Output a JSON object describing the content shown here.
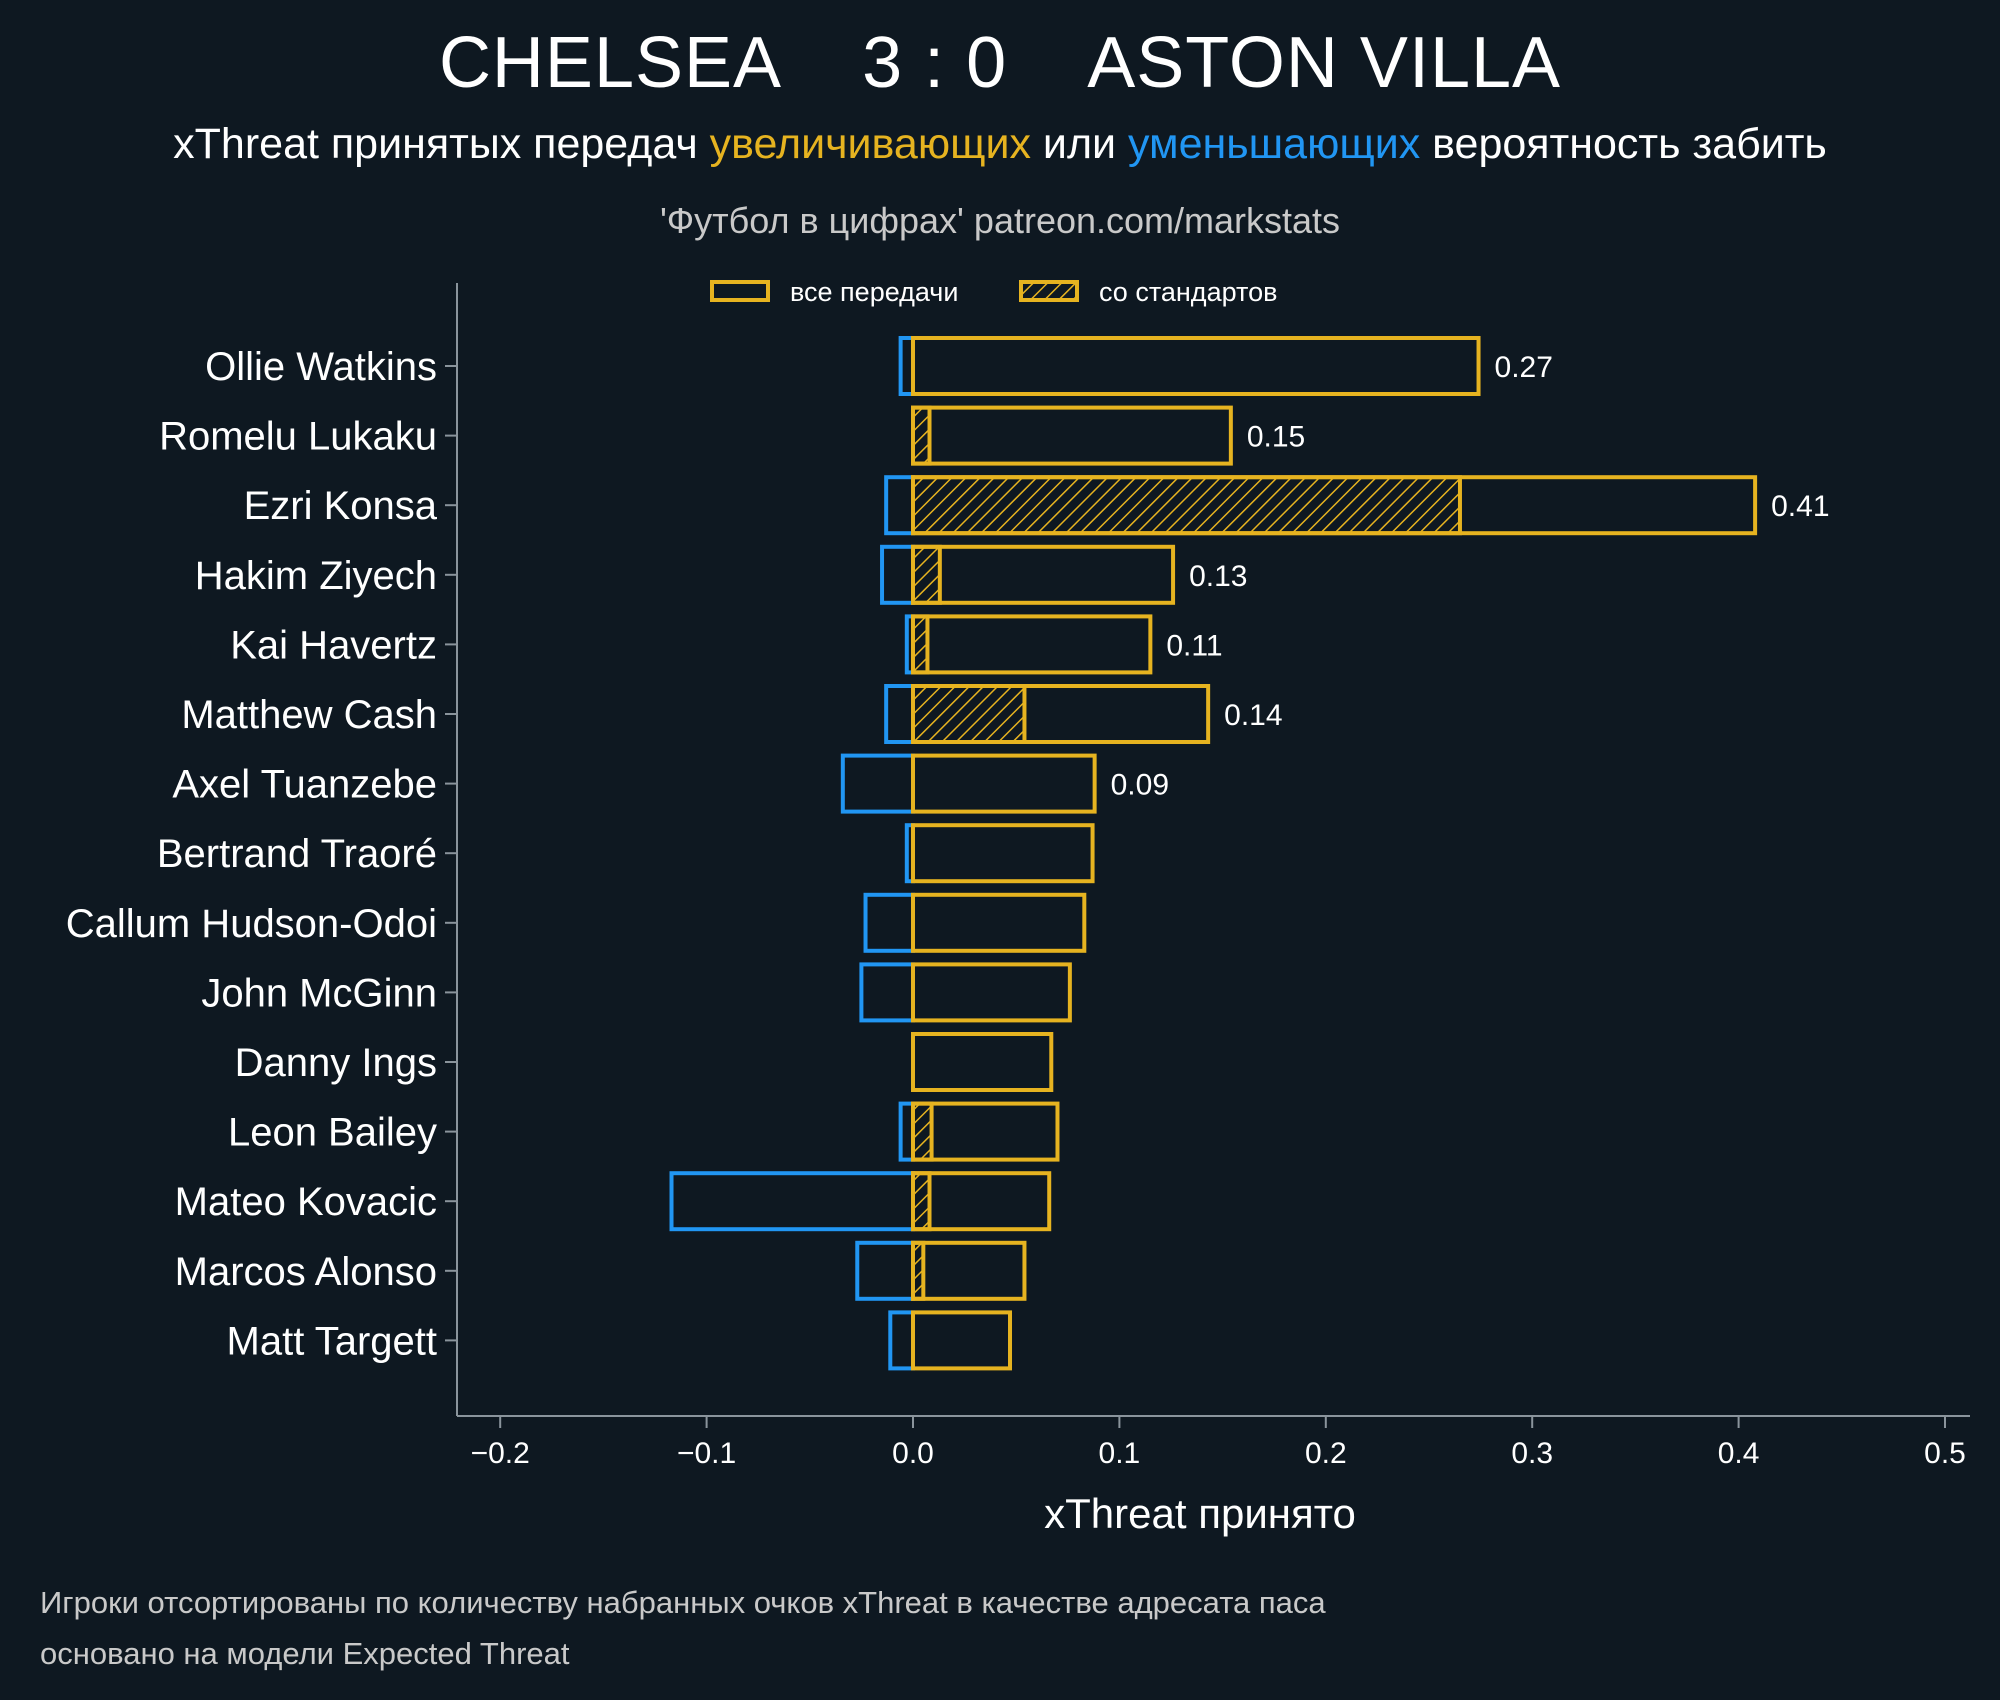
{
  "header": {
    "team_home": "CHELSEA",
    "score": "3 : 0",
    "team_away": "ASTON VILLA",
    "subtitle_part1": "xThreat принятых передач ",
    "subtitle_increase": "увеличивающих",
    "subtitle_part2": " или ",
    "subtitle_decrease": "уменьшающих",
    "subtitle_part3": " вероятность забить",
    "source": "'Футбол в цифрах' patreon.com/markstats"
  },
  "footnote": {
    "line1": "Игроки отсортированы по количеству набранных очков xThreat в качестве адресата паса",
    "line2": "основано на модели Expected Threat"
  },
  "colors": {
    "background": "#0e1821",
    "positive": "#e6b320",
    "negative": "#2196f3",
    "axis": "#8a949c"
  },
  "chart_data": {
    "type": "bar",
    "orientation": "horizontal",
    "xlabel": "xThreat принято",
    "xlim": [
      -0.22,
      0.51
    ],
    "xticks": [
      -0.2,
      -0.1,
      0.0,
      0.1,
      0.2,
      0.3,
      0.4,
      0.5
    ],
    "xtick_labels": [
      "−0.2",
      "−0.1",
      "0.0",
      "0.1",
      "0.2",
      "0.3",
      "0.4",
      "0.5"
    ],
    "legend": {
      "placement": "top-center",
      "all_passes": "все передачи",
      "set_pieces": "со стандартов"
    },
    "players": [
      {
        "name": "Ollie Watkins",
        "positive": 0.274,
        "negative": -0.006,
        "set_piece": 0.0,
        "label": "0.27"
      },
      {
        "name": "Romelu Lukaku",
        "positive": 0.154,
        "negative": 0.0,
        "set_piece": 0.008,
        "label": "0.15"
      },
      {
        "name": "Ezri Konsa",
        "positive": 0.408,
        "negative": -0.013,
        "set_piece": 0.265,
        "label": "0.41"
      },
      {
        "name": "Hakim Ziyech",
        "positive": 0.126,
        "negative": -0.015,
        "set_piece": 0.013,
        "label": "0.13"
      },
      {
        "name": "Kai Havertz",
        "positive": 0.115,
        "negative": -0.003,
        "set_piece": 0.007,
        "label": "0.11"
      },
      {
        "name": "Matthew Cash",
        "positive": 0.143,
        "negative": -0.013,
        "set_piece": 0.054,
        "label": "0.14"
      },
      {
        "name": "Axel Tuanzebe",
        "positive": 0.088,
        "negative": -0.034,
        "set_piece": 0.0,
        "label": "0.09"
      },
      {
        "name": "Bertrand Traoré",
        "positive": 0.087,
        "negative": -0.003,
        "set_piece": 0.0,
        "label": ""
      },
      {
        "name": "Callum Hudson-Odoi",
        "positive": 0.083,
        "negative": -0.023,
        "set_piece": 0.0,
        "label": ""
      },
      {
        "name": "John McGinn",
        "positive": 0.076,
        "negative": -0.025,
        "set_piece": 0.0,
        "label": ""
      },
      {
        "name": "Danny Ings",
        "positive": 0.067,
        "negative": 0.0,
        "set_piece": 0.0,
        "label": ""
      },
      {
        "name": "Leon Bailey",
        "positive": 0.07,
        "negative": -0.006,
        "set_piece": 0.009,
        "label": ""
      },
      {
        "name": "Mateo Kovacic",
        "positive": 0.066,
        "negative": -0.117,
        "set_piece": 0.008,
        "label": ""
      },
      {
        "name": "Marcos Alonso",
        "positive": 0.054,
        "negative": -0.027,
        "set_piece": 0.005,
        "label": ""
      },
      {
        "name": "Matt Targett",
        "positive": 0.047,
        "negative": -0.011,
        "set_piece": 0.0,
        "label": ""
      }
    ]
  }
}
